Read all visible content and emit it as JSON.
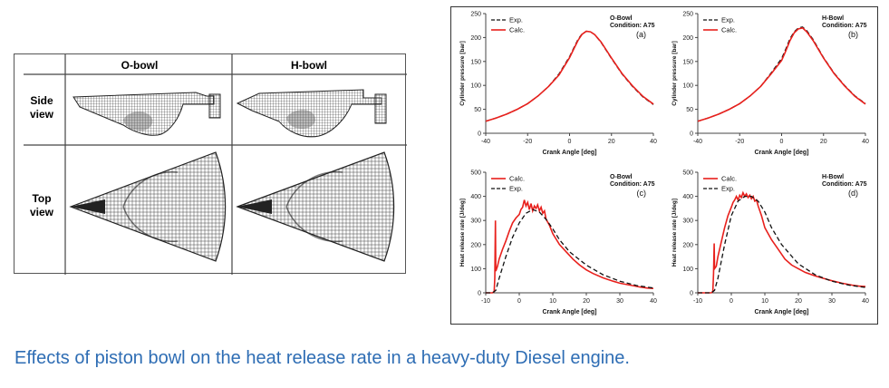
{
  "table": {
    "col_headers": [
      "O-bowl",
      "H-bowl"
    ],
    "row_headers": [
      [
        "Side",
        "view"
      ],
      [
        "Top",
        "view"
      ]
    ]
  },
  "caption": "Effects of piston bowl on the heat release rate in a heavy-duty Diesel engine.",
  "colors": {
    "calc": "#e8201c",
    "exp": "#111111",
    "caption": "#2e6db4"
  },
  "chart_data": [
    {
      "id": "a",
      "type": "line",
      "panel_label": "(a)",
      "title": [
        "O-Bowl",
        "Condition: A75"
      ],
      "xlabel": "Crank Angle [deg]",
      "ylabel": "Cylinder pressure [bar]",
      "xlim": [
        -40,
        40
      ],
      "ylim": [
        0,
        250
      ],
      "xticks": [
        -40,
        -20,
        0,
        20,
        40
      ],
      "yticks": [
        0,
        50,
        100,
        150,
        200,
        250
      ],
      "legend": [
        "Exp.",
        "Calc."
      ],
      "legend_position": "top-left",
      "series": [
        {
          "name": "Exp.",
          "style": "dashed",
          "x": [
            -40,
            -35,
            -30,
            -25,
            -20,
            -15,
            -10,
            -5,
            0,
            2,
            4,
            6,
            8,
            10,
            12,
            15,
            20,
            25,
            30,
            35,
            40
          ],
          "y": [
            25,
            32,
            40,
            50,
            62,
            78,
            98,
            124,
            160,
            178,
            196,
            208,
            213,
            212,
            206,
            190,
            156,
            124,
            98,
            76,
            60
          ]
        },
        {
          "name": "Calc.",
          "style": "solid",
          "x": [
            -40,
            -35,
            -30,
            -25,
            -20,
            -15,
            -10,
            -5,
            0,
            2,
            4,
            6,
            8,
            10,
            12,
            15,
            20,
            25,
            30,
            35,
            40
          ],
          "y": [
            25,
            32,
            40,
            50,
            62,
            78,
            98,
            122,
            158,
            176,
            194,
            207,
            213,
            212,
            206,
            191,
            157,
            125,
            99,
            77,
            61
          ]
        }
      ]
    },
    {
      "id": "b",
      "type": "line",
      "panel_label": "(b)",
      "title": [
        "H-Bowl",
        "Condition: A75"
      ],
      "xlabel": "Crank Angle [deg]",
      "ylabel": "Cylinder pressure [bar]",
      "xlim": [
        -40,
        40
      ],
      "ylim": [
        0,
        250
      ],
      "xticks": [
        -40,
        -20,
        0,
        20,
        40
      ],
      "yticks": [
        0,
        50,
        100,
        150,
        200,
        250
      ],
      "legend": [
        "Exp.",
        "Calc."
      ],
      "legend_position": "top-left",
      "series": [
        {
          "name": "Exp.",
          "style": "dashed",
          "x": [
            -40,
            -35,
            -30,
            -25,
            -20,
            -15,
            -10,
            -5,
            0,
            2,
            4,
            6,
            8,
            10,
            12,
            15,
            20,
            25,
            30,
            35,
            40
          ],
          "y": [
            25,
            32,
            40,
            50,
            62,
            78,
            98,
            126,
            156,
            176,
            198,
            212,
            220,
            222,
            214,
            196,
            158,
            126,
            100,
            78,
            62
          ]
        },
        {
          "name": "Calc.",
          "style": "solid",
          "x": [
            -40,
            -35,
            -30,
            -25,
            -20,
            -15,
            -10,
            -5,
            0,
            2,
            4,
            6,
            8,
            10,
            12,
            15,
            20,
            25,
            30,
            35,
            40
          ],
          "y": [
            25,
            32,
            40,
            50,
            62,
            78,
            98,
            124,
            152,
            172,
            194,
            210,
            218,
            220,
            212,
            194,
            157,
            125,
            99,
            77,
            61
          ]
        }
      ]
    },
    {
      "id": "c",
      "type": "line",
      "panel_label": "(c)",
      "title": [
        "O-Bowl",
        "Condition: A75"
      ],
      "xlabel": "Crank Angle [deg]",
      "ylabel": "Heat release rate [J/deg]",
      "xlim": [
        -10,
        40
      ],
      "ylim": [
        0,
        500
      ],
      "xticks": [
        -10,
        0,
        10,
        20,
        30,
        40
      ],
      "yticks": [
        0,
        100,
        200,
        300,
        400,
        500
      ],
      "legend": [
        "Calc.",
        "Exp."
      ],
      "legend_position": "top-left",
      "series": [
        {
          "name": "Calc.",
          "style": "solid",
          "x": [
            -10,
            -8,
            -7.5,
            -7.3,
            -7.1,
            -7,
            -6.5,
            -6,
            -5,
            -4,
            -3,
            -2,
            -1,
            0,
            0.5,
            1,
            1.5,
            2,
            2.5,
            3,
            3.5,
            4,
            4.5,
            5,
            5.5,
            6,
            6.5,
            7,
            7.5,
            8,
            9,
            10,
            12,
            14,
            16,
            18,
            20,
            22,
            25,
            28,
            30,
            33,
            36,
            38,
            40
          ],
          "y": [
            0,
            0,
            5,
            60,
            300,
            90,
            110,
            140,
            180,
            215,
            255,
            290,
            310,
            325,
            345,
            355,
            385,
            360,
            375,
            345,
            370,
            340,
            360,
            350,
            365,
            340,
            355,
            330,
            340,
            305,
            280,
            245,
            200,
            170,
            140,
            115,
            95,
            80,
            62,
            48,
            40,
            32,
            24,
            20,
            18
          ]
        },
        {
          "name": "Exp.",
          "style": "dashed",
          "x": [
            -10,
            -8,
            -7,
            -6,
            -4,
            -2,
            0,
            2,
            4,
            6,
            8,
            10,
            12,
            15,
            20,
            25,
            30,
            35,
            40
          ],
          "y": [
            0,
            0,
            10,
            60,
            150,
            230,
            290,
            330,
            345,
            335,
            305,
            265,
            220,
            170,
            115,
            75,
            48,
            30,
            20
          ]
        }
      ]
    },
    {
      "id": "d",
      "type": "line",
      "panel_label": "(d)",
      "title": [
        "H-Bowl",
        "Condition: A75"
      ],
      "xlabel": "Crank Angle [deg]",
      "ylabel": "Heat release rate [J/deg]",
      "xlim": [
        -10,
        40
      ],
      "ylim": [
        0,
        500
      ],
      "xticks": [
        -10,
        0,
        10,
        20,
        30,
        40
      ],
      "yticks": [
        0,
        100,
        200,
        300,
        400,
        500
      ],
      "legend": [
        "Calc.",
        "Exp."
      ],
      "legend_position": "top-left",
      "series": [
        {
          "name": "Calc.",
          "style": "solid",
          "x": [
            -10,
            -6,
            -5.5,
            -5.3,
            -5.1,
            -5,
            -4.5,
            -4,
            -3,
            -2,
            -1,
            0,
            0.5,
            1,
            1.5,
            2,
            2.5,
            3,
            3.5,
            4,
            4.5,
            5,
            5.5,
            6,
            6.5,
            7,
            7.5,
            8,
            9,
            10,
            12,
            14,
            16,
            18,
            20,
            22,
            25,
            28,
            30,
            33,
            36,
            38,
            40
          ],
          "y": [
            0,
            0,
            5,
            80,
            205,
            100,
            110,
            150,
            210,
            270,
            320,
            355,
            375,
            385,
            400,
            385,
            405,
            395,
            415,
            400,
            410,
            395,
            405,
            390,
            400,
            380,
            385,
            360,
            320,
            270,
            220,
            180,
            140,
            115,
            100,
            85,
            70,
            58,
            50,
            40,
            32,
            28,
            26
          ]
        },
        {
          "name": "Exp.",
          "style": "dashed",
          "x": [
            -10,
            -6,
            -5,
            -4,
            -2,
            0,
            2,
            4,
            6,
            8,
            10,
            12,
            15,
            20,
            25,
            30,
            35,
            40
          ],
          "y": [
            0,
            0,
            10,
            60,
            200,
            320,
            380,
            400,
            400,
            380,
            335,
            270,
            200,
            120,
            75,
            48,
            32,
            22
          ]
        }
      ]
    }
  ]
}
